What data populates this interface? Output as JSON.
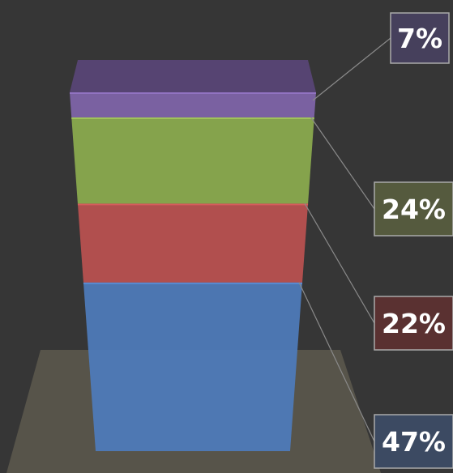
{
  "chart_data": {
    "type": "bar",
    "subtype": "stacked-3d-cylinder",
    "title": "",
    "xlabel": "",
    "ylabel": "",
    "ylim": [
      0,
      100
    ],
    "grid": false,
    "legend": "none",
    "series": [
      {
        "value": 47,
        "label": "47%",
        "color": "#4e7ab8",
        "label_bg": "#3c4a62"
      },
      {
        "value": 22,
        "label": "22%",
        "color": "#b85150",
        "label_bg": "#5a3131"
      },
      {
        "value": 24,
        "label": "24%",
        "color": "#8aaa4e",
        "label_bg": "#555a3e"
      },
      {
        "value": 7,
        "label": "7%",
        "color": "#7e64a8",
        "label_bg": "#46405c"
      }
    ]
  },
  "colors": {
    "background": "#363636",
    "floor": "#57544a",
    "leader_line": "#8a8a8a",
    "label_border": "#aaaaaa"
  }
}
